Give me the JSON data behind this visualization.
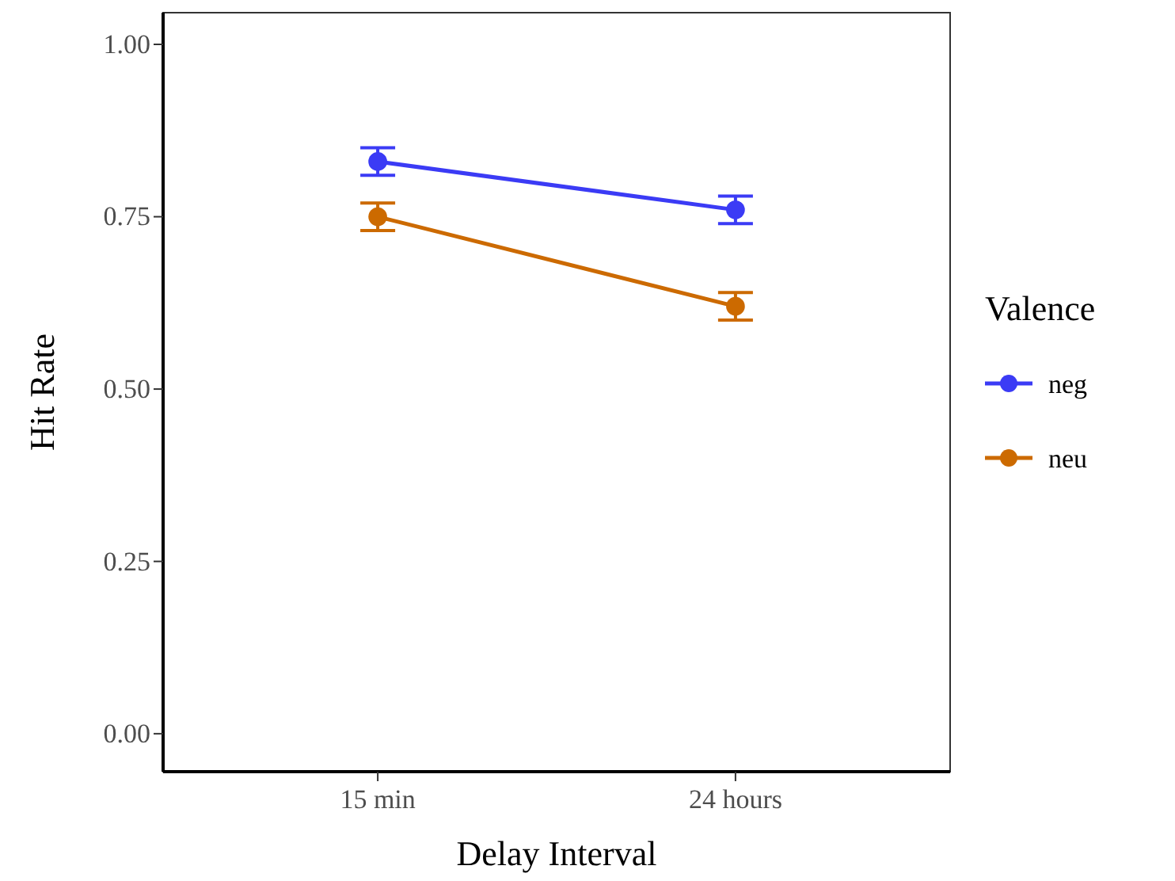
{
  "chart_data": {
    "type": "line",
    "xlabel": "Delay Interval",
    "ylabel": "Hit Rate",
    "legend_title": "Valence",
    "categories": [
      "15 min",
      "24 hours"
    ],
    "series": [
      {
        "name": "neg",
        "color": "#3b3bf5",
        "values": [
          0.83,
          0.76
        ],
        "errors": [
          0.02,
          0.02
        ]
      },
      {
        "name": "neu",
        "color": "#cc6a00",
        "values": [
          0.75,
          0.62
        ],
        "errors": [
          0.02,
          0.02
        ]
      }
    ],
    "ylim": [
      -0.055,
      1.046
    ],
    "yticks": [
      {
        "value": 0,
        "label": "0.00"
      },
      {
        "value": 0.25,
        "label": "0.25"
      },
      {
        "value": 0.5,
        "label": "0.50"
      },
      {
        "value": 0.75,
        "label": "0.75"
      },
      {
        "value": 1,
        "label": "1.00"
      }
    ],
    "grid": false,
    "legend": "right",
    "marker": "circle",
    "line_style": "solid"
  }
}
